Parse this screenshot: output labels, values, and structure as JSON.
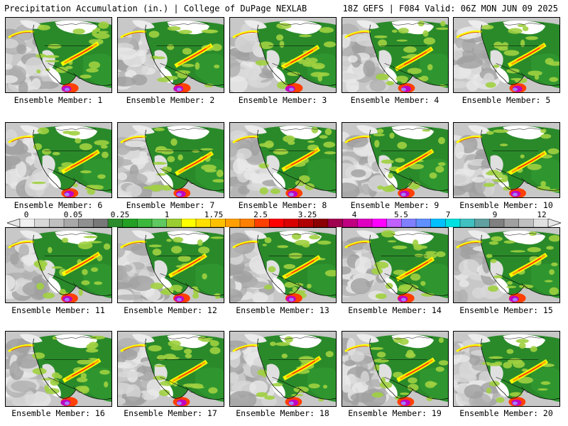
{
  "header": {
    "title_left": "Precipitation Accumulation (in.) | College of DuPage NEXLAB",
    "title_right": "18Z GEFS | F084 Valid: 06Z MON JUN 09 2025"
  },
  "panels": [
    {
      "label": "Ensemble Member: 1"
    },
    {
      "label": "Ensemble Member: 2"
    },
    {
      "label": "Ensemble Member: 3"
    },
    {
      "label": "Ensemble Member: 4"
    },
    {
      "label": "Ensemble Member: 5"
    },
    {
      "label": "Ensemble Member: 6"
    },
    {
      "label": "Ensemble Member: 7"
    },
    {
      "label": "Ensemble Member: 8"
    },
    {
      "label": "Ensemble Member: 9"
    },
    {
      "label": "Ensemble Member: 10"
    },
    {
      "label": "Ensemble Member: 11"
    },
    {
      "label": "Ensemble Member: 12"
    },
    {
      "label": "Ensemble Member: 13"
    },
    {
      "label": "Ensemble Member: 14"
    },
    {
      "label": "Ensemble Member: 15"
    },
    {
      "label": "Ensemble Member: 16"
    },
    {
      "label": "Ensemble Member: 17"
    },
    {
      "label": "Ensemble Member: 18"
    },
    {
      "label": "Ensemble Member: 19"
    },
    {
      "label": "Ensemble Member: 20"
    }
  ],
  "colorbar": {
    "labels": [
      "0",
      "0.05",
      "0.25",
      "1",
      "1.75",
      "2.5",
      "3.25",
      "4",
      "5.5",
      "7",
      "9",
      "12"
    ],
    "colors": [
      "#f0f0f0",
      "#d8d8d8",
      "#c0c0c0",
      "#a8a8a8",
      "#909090",
      "#787878",
      "#2c8c2c",
      "#24a024",
      "#3cb83c",
      "#60c860",
      "#9acd32",
      "#ffff00",
      "#ffe000",
      "#ffc000",
      "#ffa000",
      "#ff8000",
      "#ff4000",
      "#ff0000",
      "#d80000",
      "#b00000",
      "#8b0000",
      "#a00050",
      "#c00080",
      "#e000c0",
      "#ff00ff",
      "#c060ff",
      "#8080ff",
      "#6090ff",
      "#00c0ff",
      "#00e0e0",
      "#40c0c0",
      "#60a0a0",
      "#808080",
      "#a0a0a0",
      "#c0c0c0",
      "#e0e0e0"
    ]
  },
  "colors": {
    "land": "#2a8a2a",
    "ocean": "#c8c8c8",
    "dry": "#ffffff",
    "light_precip": "#a0d040",
    "moderate": "#ffff00",
    "heavy": "#ff2000"
  }
}
